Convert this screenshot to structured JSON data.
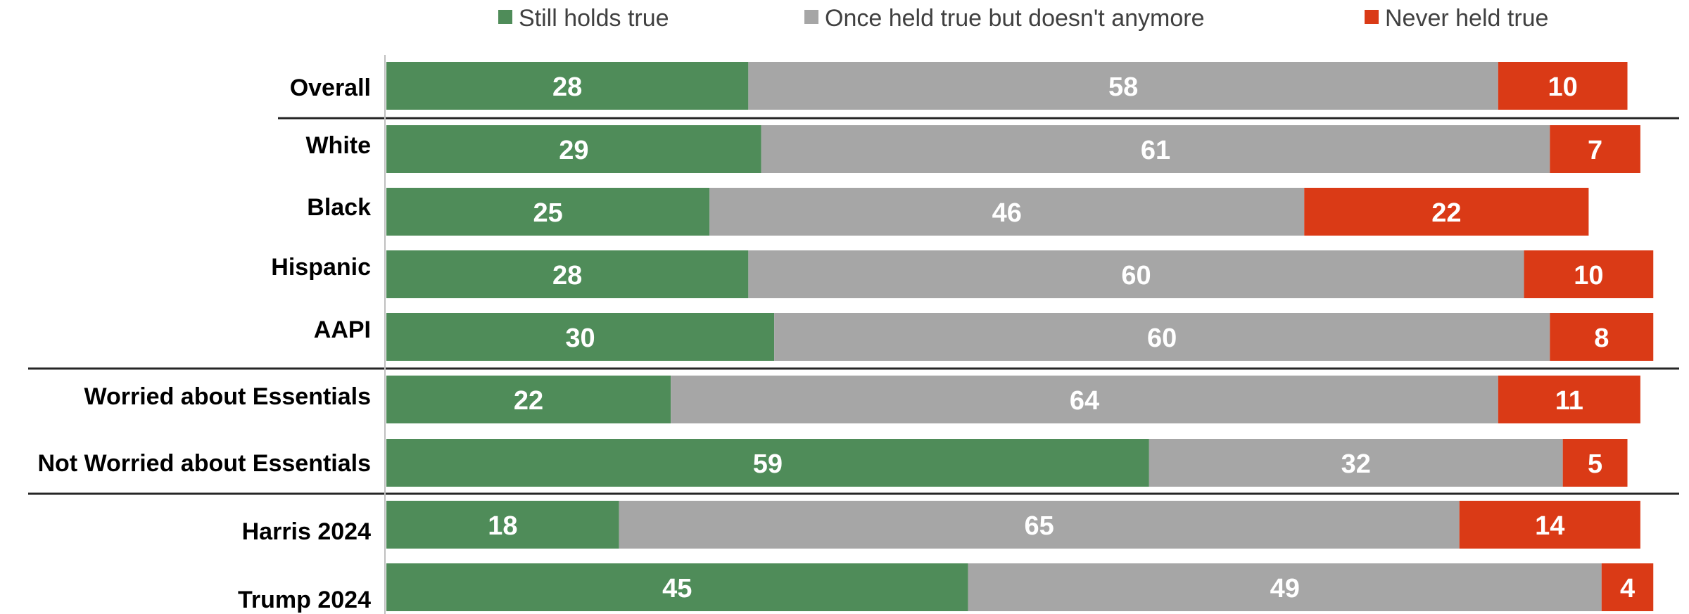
{
  "chart_data": {
    "type": "bar",
    "orientation": "horizontal",
    "stacked": true,
    "title": "",
    "xlabel": "",
    "ylabel": "",
    "xlim": [
      0,
      100
    ],
    "legend_position": "top",
    "grid": false,
    "categories": [
      "Overall",
      "White",
      "Black",
      "Hispanic",
      "AAPI",
      "Worried about Essentials",
      "Not Worried about Essentials",
      "Harris 2024",
      "Trump 2024"
    ],
    "groups": [
      [
        "Overall"
      ],
      [
        "White",
        "Black",
        "Hispanic",
        "AAPI"
      ],
      [
        "Worried about Essentials",
        "Not Worried about Essentials"
      ],
      [
        "Harris 2024",
        "Trump 2024"
      ]
    ],
    "series": [
      {
        "name": "Still holds true",
        "color": "#4f8c59",
        "values": [
          28,
          29,
          25,
          28,
          30,
          22,
          59,
          18,
          45
        ]
      },
      {
        "name": "Once held true but doesn't anymore",
        "color": "#a6a6a6",
        "values": [
          58,
          61,
          46,
          60,
          60,
          64,
          32,
          65,
          49
        ]
      },
      {
        "name": "Never held true",
        "color": "#da3a16",
        "values": [
          10,
          7,
          22,
          10,
          8,
          11,
          5,
          14,
          4
        ]
      }
    ]
  }
}
